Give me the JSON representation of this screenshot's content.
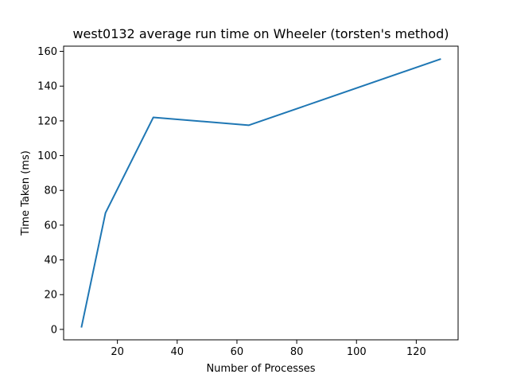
{
  "chart_data": {
    "type": "line",
    "title": "west0132 average run time on Wheeler (torsten's method)",
    "xlabel": "Number of Processes",
    "ylabel": "Time Taken (ms)",
    "xlim": [
      2,
      134
    ],
    "ylim": [
      -6,
      163
    ],
    "xticks": [
      20,
      40,
      60,
      80,
      100,
      120
    ],
    "yticks": [
      0,
      20,
      40,
      60,
      80,
      100,
      120,
      140,
      160
    ],
    "grid": false,
    "series": [
      {
        "color": "#1f77b4",
        "x": [
          8,
          16,
          32,
          64,
          128
        ],
        "y": [
          1.5,
          67,
          122,
          117.5,
          155.5
        ]
      }
    ]
  }
}
